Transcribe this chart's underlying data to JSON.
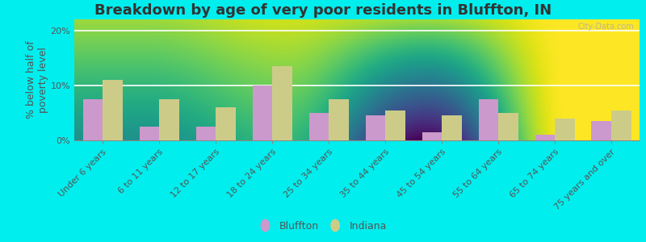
{
  "title": "Breakdown by age of very poor residents in Bluffton, IN",
  "ylabel": "% below half of\npoverty level",
  "categories": [
    "Under 6 years",
    "6 to 11 years",
    "12 to 17 years",
    "18 to 24 years",
    "25 to 34 years",
    "35 to 44 years",
    "45 to 54 years",
    "55 to 64 years",
    "65 to 74 years",
    "75 years and over"
  ],
  "bluffton": [
    7.5,
    2.5,
    2.5,
    10.0,
    5.0,
    4.5,
    1.5,
    7.5,
    1.0,
    3.5
  ],
  "indiana": [
    11.0,
    7.5,
    6.0,
    13.5,
    7.5,
    5.5,
    4.5,
    5.0,
    4.0,
    5.5
  ],
  "bluffton_color": "#cc99cc",
  "indiana_color": "#cccc88",
  "background_outer": "#00eeee",
  "background_plot_top": "#f5faf5",
  "background_plot_bottom": "#dde8bb",
  "ylim": [
    0,
    22
  ],
  "yticks": [
    0,
    10,
    20
  ],
  "ytick_labels": [
    "0%",
    "10%",
    "20%"
  ],
  "title_fontsize": 13,
  "axis_label_fontsize": 9,
  "tick_label_fontsize": 8,
  "legend_label_bluffton": "Bluffton",
  "legend_label_indiana": "Indiana"
}
